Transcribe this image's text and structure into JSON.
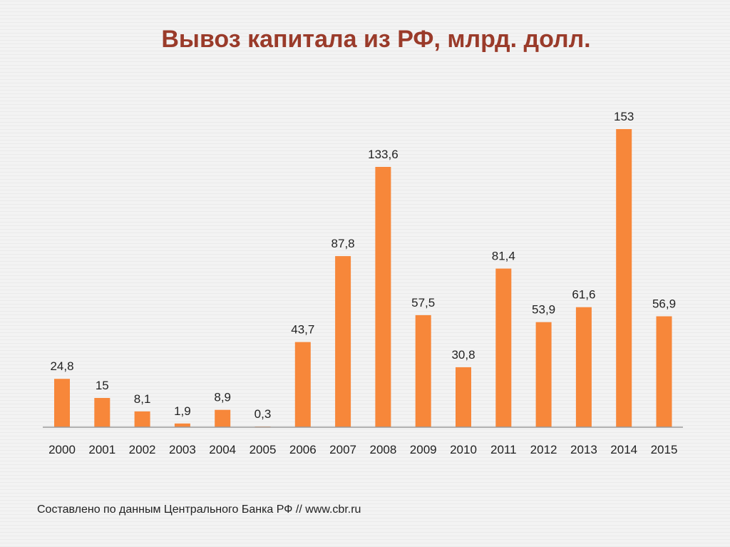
{
  "chart_data": {
    "type": "bar",
    "title": "Вывоз капитала из РФ, млрд. долл.",
    "categories": [
      "2000",
      "2001",
      "2002",
      "2003",
      "2004",
      "2005",
      "2006",
      "2007",
      "2008",
      "2009",
      "2010",
      "2011",
      "2012",
      "2013",
      "2014",
      "2015"
    ],
    "values": [
      24.8,
      15,
      8.1,
      1.9,
      8.9,
      0.3,
      43.7,
      87.8,
      133.6,
      57.5,
      30.8,
      81.4,
      53.9,
      61.6,
      153,
      56.9
    ],
    "value_labels": [
      "24,8",
      "15",
      "8,1",
      "1,9",
      "8,9",
      "0,3",
      "43,7",
      "87,8",
      "133,6",
      "57,5",
      "30,8",
      "81,4",
      "53,9",
      "61,6",
      "153",
      "56,9"
    ],
    "ylim": [
      0,
      153
    ],
    "grid": false,
    "legend": "none",
    "bar_color": "#f7873a"
  },
  "source_note": "Составлено по данным Центрального Банка РФ // www.cbr.ru"
}
